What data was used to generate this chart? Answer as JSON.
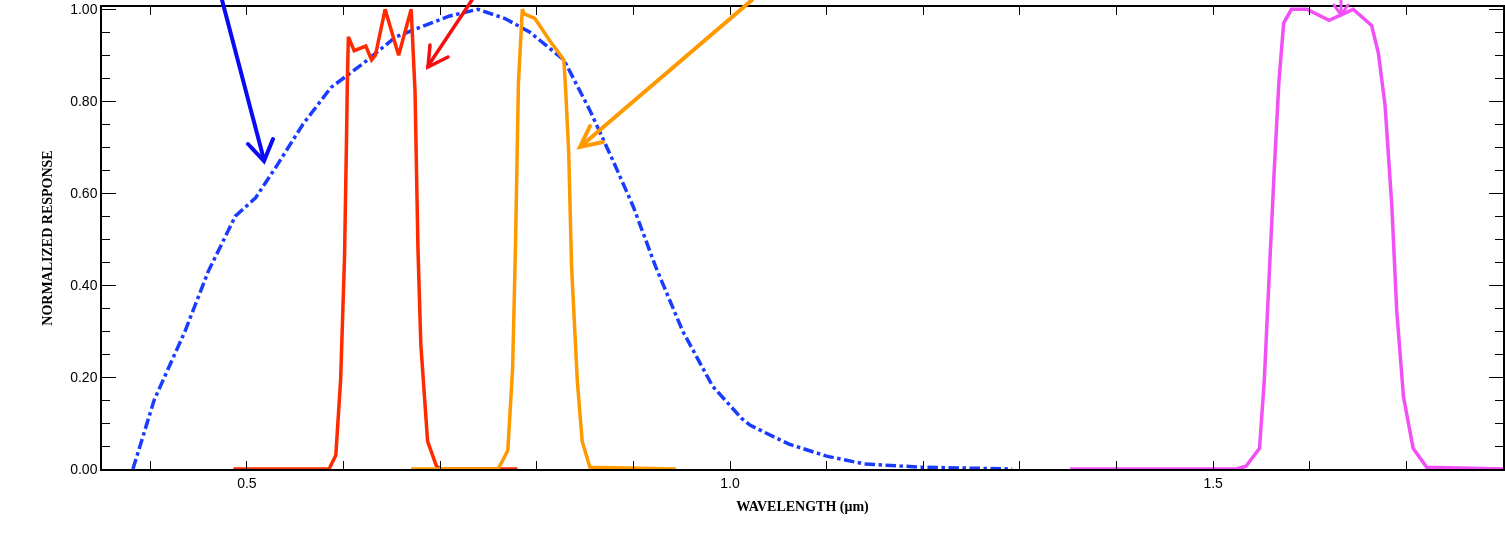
{
  "chart_data": {
    "type": "line",
    "xlabel": "WAVELENGTH (μm)",
    "ylabel": "NORMALIZED RESPONSE",
    "xlim": [
      0.35,
      1.8
    ],
    "xticks": [
      {
        "value": 0.4,
        "label": null
      },
      {
        "value": 0.5,
        "label": "0.5"
      },
      {
        "value": 0.6,
        "label": null
      },
      {
        "value": 0.7,
        "label": null
      },
      {
        "value": 0.8,
        "label": null
      },
      {
        "value": 0.9,
        "label": null
      },
      {
        "value": 1.0,
        "label": "1.0"
      },
      {
        "value": 1.1,
        "label": null
      },
      {
        "value": 1.2,
        "label": null
      },
      {
        "value": 1.3,
        "label": null
      },
      {
        "value": 1.4,
        "label": null
      },
      {
        "value": 1.5,
        "label": "1.5"
      },
      {
        "value": 1.6,
        "label": null
      },
      {
        "value": 1.7,
        "label": null
      }
    ],
    "ylim": [
      0,
      1.005
    ],
    "yticks": [
      {
        "value": 0,
        "label": "0.00"
      },
      {
        "value": 0.05,
        "label": null
      },
      {
        "value": 0.1,
        "label": null
      },
      {
        "value": 0.15,
        "label": null
      },
      {
        "value": 0.2,
        "label": "0.20"
      },
      {
        "value": 0.25,
        "label": null
      },
      {
        "value": 0.3,
        "label": null
      },
      {
        "value": 0.35,
        "label": null
      },
      {
        "value": 0.4,
        "label": "0.40"
      },
      {
        "value": 0.45,
        "label": null
      },
      {
        "value": 0.5,
        "label": null
      },
      {
        "value": 0.55,
        "label": null
      },
      {
        "value": 0.6,
        "label": "0.60"
      },
      {
        "value": 0.65,
        "label": null
      },
      {
        "value": 0.7,
        "label": null
      },
      {
        "value": 0.75,
        "label": null
      },
      {
        "value": 0.8,
        "label": "0.80"
      },
      {
        "value": 0.85,
        "label": null
      },
      {
        "value": 0.9,
        "label": null
      },
      {
        "value": 0.95,
        "label": null
      },
      {
        "value": 1.0,
        "label": "1.00"
      }
    ],
    "series": [
      {
        "color": "#1a3cff",
        "line_style": "dashdot",
        "x": [
          0.382,
          0.404,
          0.436,
          0.46,
          0.488,
          0.509,
          0.531,
          0.558,
          0.587,
          0.619,
          0.654,
          0.709,
          0.739,
          0.767,
          0.793,
          0.828,
          0.855,
          0.879,
          0.9,
          0.923,
          0.951,
          0.982,
          1.012,
          1.021,
          1.061,
          1.1,
          1.139,
          1.198,
          1.292
        ],
        "values": [
          0,
          0.15,
          0.3,
          0.43,
          0.55,
          0.59,
          0.66,
          0.75,
          0.83,
          0.88,
          0.94,
          0.985,
          1.0,
          0.98,
          0.95,
          0.89,
          0.78,
          0.67,
          0.57,
          0.44,
          0.3,
          0.18,
          0.11,
          0.095,
          0.054,
          0.028,
          0.011,
          0.004,
          0
        ]
      },
      {
        "color": "#ff2a00",
        "line_style": "solid",
        "x": [
          0.486,
          0.585,
          0.592,
          0.597,
          0.601,
          0.603,
          0.604,
          0.605,
          0.611,
          0.623,
          0.629,
          0.633,
          0.643,
          0.657,
          0.67,
          0.674,
          0.677,
          0.68,
          0.687,
          0.696,
          0.7,
          0.78
        ],
        "values": [
          0,
          0,
          0.03,
          0.195,
          0.46,
          0.71,
          0.85,
          0.94,
          0.91,
          0.92,
          0.89,
          0.9,
          1.0,
          0.9,
          1.0,
          0.82,
          0.48,
          0.27,
          0.06,
          0.007,
          0,
          0
        ]
      },
      {
        "color": "#ff9900",
        "line_style": "solid",
        "x": [
          0.67,
          0.76,
          0.77,
          0.775,
          0.778,
          0.781,
          0.785,
          0.787,
          0.798,
          0.814,
          0.828,
          0.83,
          0.833,
          0.836,
          0.842,
          0.847,
          0.855,
          0.944
        ],
        "values": [
          0,
          0,
          0.04,
          0.22,
          0.49,
          0.84,
          1.0,
          0.99,
          0.98,
          0.93,
          0.89,
          0.82,
          0.69,
          0.44,
          0.19,
          0.06,
          0.004,
          0
        ]
      },
      {
        "color": "#f050f5",
        "line_style": "solid",
        "x": [
          1.352,
          1.524,
          1.534,
          1.548,
          1.553,
          1.558,
          1.563,
          1.568,
          1.573,
          1.581,
          1.597,
          1.62,
          1.645,
          1.664,
          1.671,
          1.678,
          1.685,
          1.69,
          1.697,
          1.707,
          1.721,
          1.8
        ],
        "values": [
          0,
          0,
          0.006,
          0.045,
          0.195,
          0.42,
          0.64,
          0.84,
          0.97,
          1.0,
          1.0,
          0.976,
          1.0,
          0.965,
          0.905,
          0.79,
          0.57,
          0.345,
          0.157,
          0.045,
          0.004,
          0
        ]
      }
    ]
  }
}
